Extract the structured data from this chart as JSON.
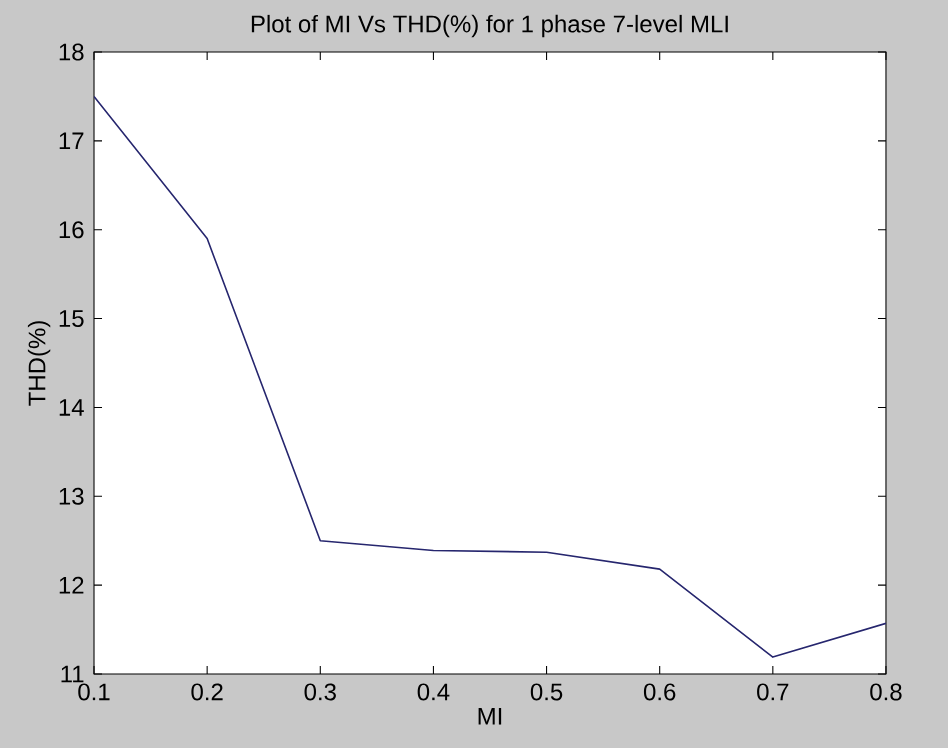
{
  "chart_data": {
    "type": "line",
    "title": "Plot of MI Vs THD(%) for 1 phase 7-level MLI",
    "xlabel": "MI",
    "ylabel": "THD(%)",
    "x": [
      0.1,
      0.2,
      0.3,
      0.4,
      0.5,
      0.6,
      0.7,
      0.8
    ],
    "series": [
      {
        "color": "#26266e",
        "values": [
          17.5,
          15.9,
          12.5,
          12.39,
          12.37,
          12.18,
          11.19,
          11.57
        ]
      }
    ],
    "xlim": [
      0.1,
      0.8
    ],
    "xticks": [
      0.1,
      0.2,
      0.3,
      0.4,
      0.5,
      0.6,
      0.7,
      0.8
    ],
    "ylim": [
      11,
      18
    ],
    "yticks": [
      11,
      12,
      13,
      14,
      15,
      16,
      17,
      18
    ],
    "grid": false,
    "marker": "none",
    "line_style": "solid"
  }
}
